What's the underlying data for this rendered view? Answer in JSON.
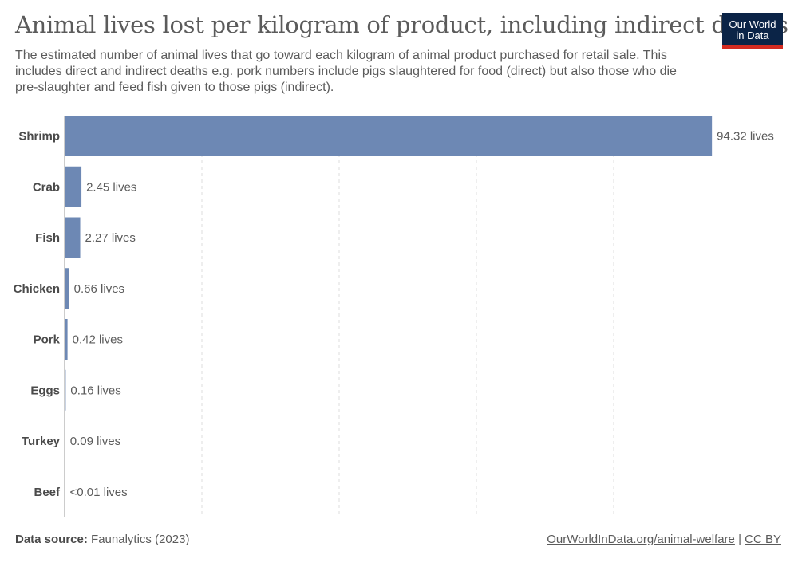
{
  "header": {
    "title": "Animal lives lost per kilogram of product, including indirect deaths",
    "subtitle": "The estimated number of animal lives that go toward each kilogram of animal product purchased for retail sale. This includes direct and indirect deaths e.g. pork numbers include pigs slaughtered for food (direct) but also those who die pre-slaughter and feed fish given to those pigs (indirect).",
    "logo_line1": "Our World",
    "logo_line2": "in Data"
  },
  "footer": {
    "source_label": "Data source:",
    "source_value": "Faunalytics (2023)",
    "link_text": "OurWorldInData.org/animal-welfare",
    "separator": "|",
    "license_text": "CC BY"
  },
  "colors": {
    "bar": "#6d88b4",
    "grid": "#dddddd",
    "axis": "#999999",
    "logo_bg": "#0b2447",
    "logo_accent": "#d42b21"
  },
  "chart_data": {
    "type": "bar",
    "orientation": "horizontal",
    "categories": [
      "Shrimp",
      "Crab",
      "Fish",
      "Chicken",
      "Pork",
      "Eggs",
      "Turkey",
      "Beef"
    ],
    "values": [
      94.32,
      2.45,
      2.27,
      0.66,
      0.42,
      0.16,
      0.09,
      0.005
    ],
    "value_labels": [
      "94.32 lives",
      "2.45 lives",
      "2.27 lives",
      "0.66 lives",
      "0.42 lives",
      "0.16 lives",
      "0.09 lives",
      "<0.01 lives"
    ],
    "xlim": [
      0,
      100
    ],
    "gridlines_at": [
      20,
      40,
      60,
      80
    ],
    "grid": true
  }
}
